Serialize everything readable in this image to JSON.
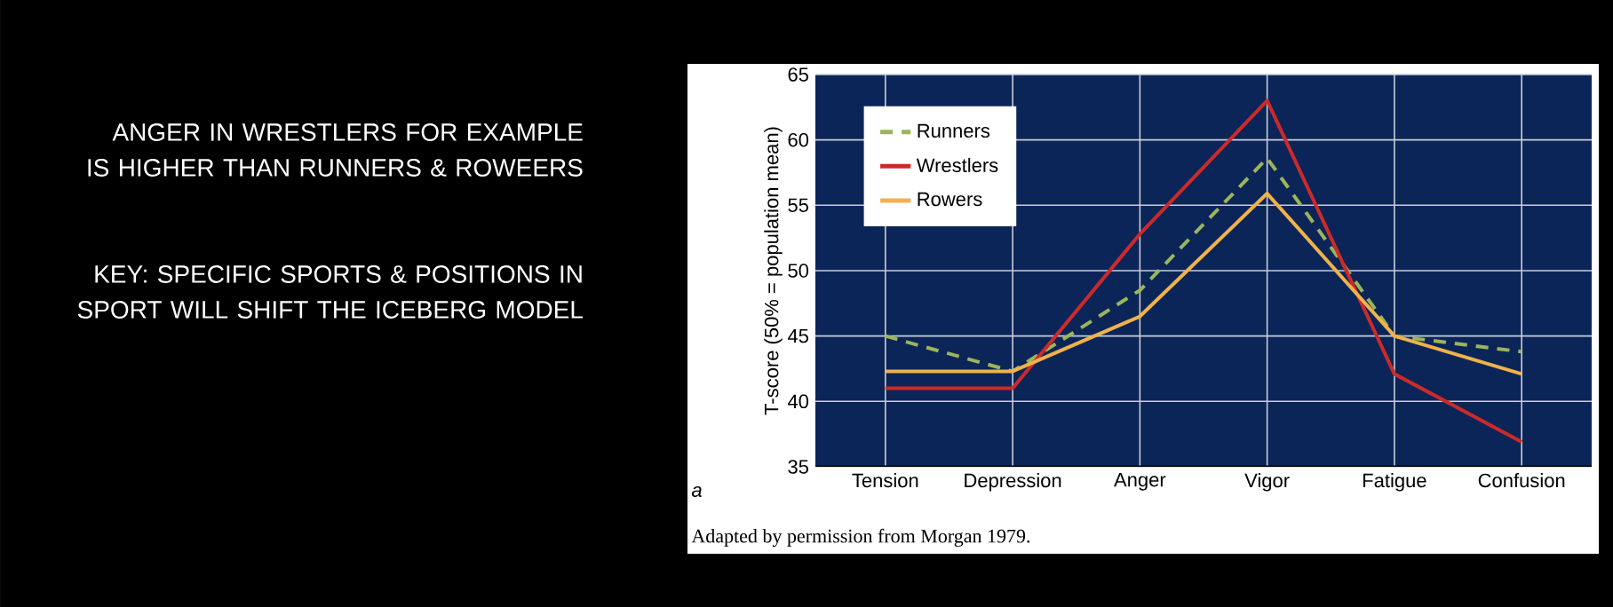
{
  "chart_data": {
    "type": "line",
    "ylabel": "T-score (50% = population mean)",
    "categories": [
      "Tension",
      "Depression",
      "Anger",
      "Vigor",
      "Fatigue",
      "Confusion"
    ],
    "series": [
      {
        "name": "Runners",
        "color": "#9bb55a",
        "line_style": "dashed",
        "values": [
          45.0,
          42.3,
          48.5,
          58.6,
          45.0,
          43.8
        ]
      },
      {
        "name": "Wrestlers",
        "color": "#cc2a2a",
        "line_style": "solid",
        "values": [
          41.0,
          41.0,
          52.8,
          63.0,
          42.1,
          36.9
        ]
      },
      {
        "name": "Rowers",
        "color": "#f0b24a",
        "line_style": "solid",
        "values": [
          42.3,
          42.3,
          46.5,
          55.9,
          45.0,
          42.1
        ]
      }
    ],
    "ylim": [
      35,
      65
    ],
    "yticks": [
      35,
      40,
      45,
      50,
      55,
      60,
      65
    ],
    "grid": true,
    "legend": "top left",
    "annotations": [
      "ANGER IN WRESTLERS FOR EXAMPLE IS HIGHER THAN RUNNERS & ROWEERS",
      "KEY: SPECIFIC SPORTS & POSITIONS IN SPORT WILL SHIFT THE ICEBERG MODEL",
      "a",
      "Adapted by permission from Morgan 1979."
    ]
  }
}
